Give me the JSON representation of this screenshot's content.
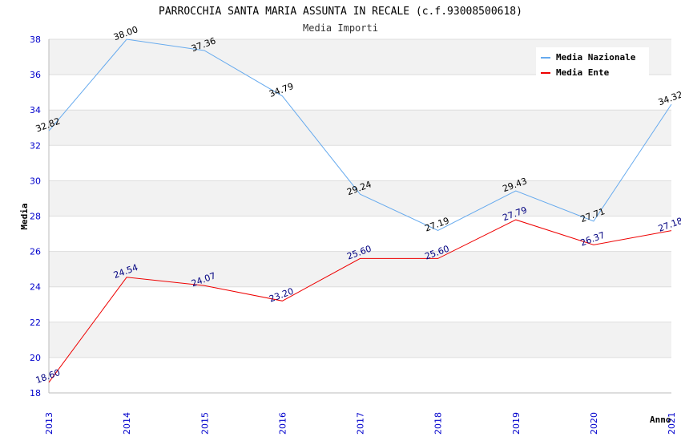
{
  "chart_data": {
    "type": "line",
    "title": "PARROCCHIA SANTA MARIA ASSUNTA IN RECALE (c.f.93008500618)",
    "subtitle": "Media Importi",
    "xlabel": "Anno",
    "ylabel": "Media",
    "categories": [
      "2013",
      "2014",
      "2015",
      "2016",
      "2017",
      "2018",
      "2019",
      "2020",
      "2021"
    ],
    "ylim": [
      18,
      38
    ],
    "yticks": [
      18,
      20,
      22,
      24,
      26,
      28,
      30,
      32,
      34,
      36,
      38
    ],
    "grid": true,
    "legend_position": "top-right",
    "series": [
      {
        "name": "Media Nazionale",
        "color": "#66aaee",
        "label_color": "#000000",
        "values": [
          32.82,
          38.0,
          37.36,
          34.79,
          29.24,
          27.19,
          29.43,
          27.71,
          34.32
        ],
        "labels": [
          "32.82",
          "38.00",
          "37.36",
          "34.79",
          "29.24",
          "27.19",
          "29.43",
          "27.71",
          "34.32"
        ]
      },
      {
        "name": "Media Ente",
        "color": "#ee0000",
        "label_color": "#000080",
        "values": [
          18.6,
          24.54,
          24.07,
          23.2,
          25.6,
          25.6,
          27.79,
          26.37,
          27.18
        ],
        "labels": [
          "18.60",
          "24.54",
          "24.07",
          "23.20",
          "25.60",
          "25.60",
          "27.79",
          "26.37",
          "27.18"
        ]
      }
    ]
  }
}
